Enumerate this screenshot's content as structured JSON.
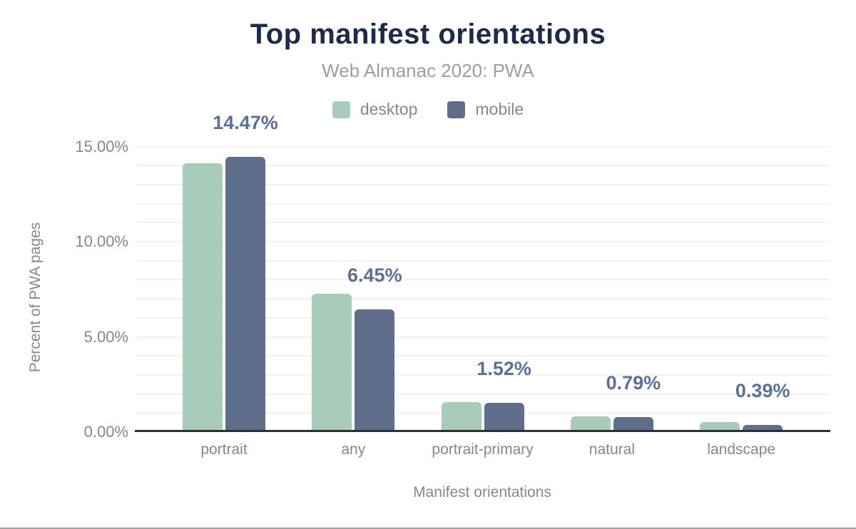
{
  "chart_data": {
    "type": "bar",
    "title": "Top manifest orientations",
    "subtitle": "Web Almanac 2020: PWA",
    "xlabel": "Manifest orientations",
    "ylabel": "Percent of PWA pages",
    "categories": [
      "portrait",
      "any",
      "portrait-primary",
      "natural",
      "landscape"
    ],
    "series": [
      {
        "name": "desktop",
        "color": "#a9cbba",
        "values": [
          14.13,
          7.25,
          1.57,
          0.81,
          0.51
        ]
      },
      {
        "name": "mobile",
        "color": "#5f6e8a",
        "values": [
          14.47,
          6.45,
          1.52,
          0.79,
          0.39
        ]
      }
    ],
    "value_labels": [
      "14.47%",
      "6.45%",
      "1.52%",
      "0.79%",
      "0.39%"
    ],
    "value_labels_series": "mobile",
    "y_ticks": [
      {
        "value": 0,
        "label": "0.00%"
      },
      {
        "value": 5,
        "label": "5.00%"
      },
      {
        "value": 10,
        "label": "10.00%"
      },
      {
        "value": 15,
        "label": "15.00%"
      }
    ],
    "ylim": [
      0,
      16
    ],
    "grid": {
      "step_percent": 1,
      "max_percent": 15,
      "visible": true
    },
    "legend_position": "top"
  },
  "colors": {
    "desktop": "#a9cbba",
    "mobile": "#5f6e8a",
    "title": "#1c2b4a",
    "subtitle": "#9b9ea3",
    "axis_text": "#85878c",
    "value_label": "#5c7094",
    "gridline": "#f2f2f4",
    "axis_line": "#2e2f33"
  }
}
